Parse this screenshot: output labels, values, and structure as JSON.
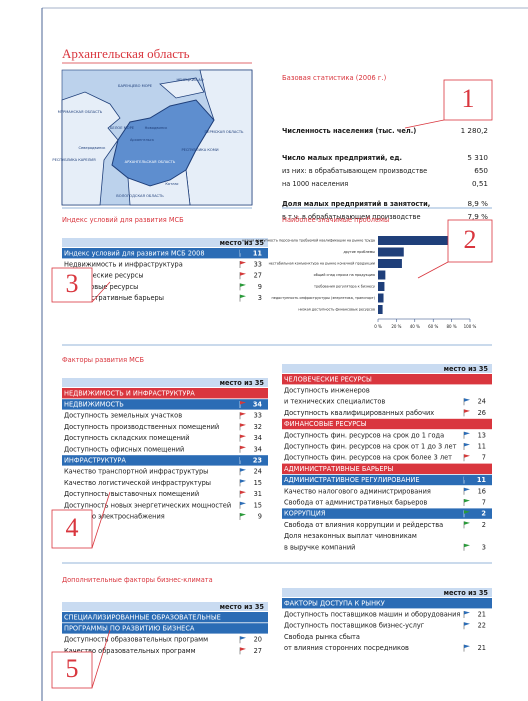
{
  "page": {
    "title": "Архангельская область",
    "map_labels": [
      "БАРЕНЦЕВО МОРЕ",
      "МУРМАНСКАЯ ОБЛАСТЬ",
      "НЕНЕЦКИЙ АО",
      "БЕЛОЕ МОРЕ",
      "Архангельск",
      "Северодвинск",
      "Новодвинск",
      "РЕСПУБЛИКА КАРЕЛИЯ",
      "АРХАНГЕЛЬСКАЯ ОБЛАСТЬ",
      "РЕСПУБЛИКА КОМИ",
      "ПЕРМСКАЯ ОБЛАСТЬ",
      "Котлас",
      "ВОЛОГОДСКАЯ ОБЛАСТЬ"
    ],
    "callouts": [
      "1",
      "2",
      "3",
      "4",
      "5"
    ]
  },
  "stats": {
    "title": "Базовая статистика (2006 г.)",
    "rows": [
      {
        "label": "Численность населения (тыс. чел.)",
        "value": "1 280,2",
        "bold": true
      },
      {
        "label": "Число малых предприятий, ед.",
        "value": "5 310",
        "bold": true
      },
      {
        "label": "из них: в обрабатывающем производстве",
        "value": "650",
        "bold": false
      },
      {
        "label": "на 1000 населения",
        "value": "0,51",
        "bold": false
      },
      {
        "label": "Доля малых предприятий в занятости,",
        "value": "8,9 %",
        "bold": true
      },
      {
        "label": "в т.ч. в обрабатывающем производстве",
        "value": "7,9 %",
        "bold": false
      }
    ]
  },
  "index": {
    "title": "Индекс условий для развития МСБ",
    "header": "место из 35",
    "rows": [
      {
        "text": "Индекс условий для развития МСБ 2008",
        "value": 11,
        "kind": "sub",
        "flag": "blue"
      },
      {
        "text": "Недвижимость и инфраструктура",
        "value": 33,
        "flag": "red"
      },
      {
        "text": "Человеческие ресурсы",
        "value": 27,
        "flag": "red"
      },
      {
        "text": "Финансовые ресурсы",
        "value": 9,
        "flag": "green"
      },
      {
        "text": "Административные барьеры",
        "value": 3,
        "flag": "green"
      }
    ]
  },
  "chart_data": {
    "type": "bar",
    "title": "Наиболее значимые проблемы",
    "categories": [
      "низкая доступность персонала требуемой квалификации на рынке труда",
      "другие проблемы",
      "нестабильная конъюнктура на рынке конечной продукции",
      "общий спад спроса на продукцию",
      "требования регулятора к бизнесу",
      "недоступность инфраструктуры (энергетика, транспорт)",
      "низкая доступность финансовых ресурсов"
    ],
    "values": [
      82,
      28,
      26,
      8,
      7,
      6,
      5
    ],
    "color": "#1f3f7a",
    "xlim": [
      0,
      100
    ],
    "xticks": [
      {
        "value": 0,
        "label": "0 %"
      },
      {
        "value": 20,
        "label": "20 %"
      },
      {
        "value": 40,
        "label": "40 %"
      },
      {
        "value": 60,
        "label": "60 %"
      },
      {
        "value": 80,
        "label": "80 %"
      },
      {
        "value": 100,
        "label": "100 %"
      }
    ]
  },
  "factors": {
    "title": "Факторы развития МСБ",
    "left": {
      "header": "место из 35",
      "rows": [
        {
          "text": "НЕДВИЖИМОСТЬ И ИНФРАСТРУКТУРА",
          "kind": "section"
        },
        {
          "text": "НЕДВИЖИМОСТЬ",
          "value": 34,
          "kind": "sub",
          "flag": "red"
        },
        {
          "text": "Доступность земельных участков",
          "value": 33,
          "flag": "red"
        },
        {
          "text": "Доступность производственных помещений",
          "value": 32,
          "flag": "red"
        },
        {
          "text": "Доступность складских помещений",
          "value": 34,
          "flag": "red"
        },
        {
          "text": "Доступность офисных помещений",
          "value": 34,
          "flag": "red"
        },
        {
          "text": "ИНФРАСТРУКТУРА",
          "value": 23,
          "kind": "sub",
          "flag": "blue"
        },
        {
          "text": "Качество транспортной инфраструктуры",
          "value": 24,
          "flag": "blue"
        },
        {
          "text": "Качество логистической инфраструктуры",
          "value": 15,
          "flag": "blue"
        },
        {
          "text": "Доступность выставочных помещений",
          "value": 31,
          "flag": "red"
        },
        {
          "text": "Доступность новых энергетических мощностей",
          "value": 15,
          "flag": "blue"
        },
        {
          "text": "Качество электроснабжения",
          "value": 9,
          "flag": "green"
        }
      ]
    },
    "right": {
      "header": "место из 35",
      "rows": [
        {
          "text": "ЧЕЛОВЕЧЕСКИЕ РЕСУРСЫ",
          "kind": "section"
        },
        {
          "text": "Доступность инженеров"
        },
        {
          "text": "и технических специалистов",
          "value": 24,
          "flag": "blue"
        },
        {
          "text": "Доступность квалифицированных рабочих",
          "value": 26,
          "flag": "red"
        },
        {
          "text": "ФИНАНСОВЫЕ РЕСУРСЫ",
          "kind": "section"
        },
        {
          "text": "Доступность фин. ресурсов на срок до 1 года",
          "value": 13,
          "flag": "blue"
        },
        {
          "text": "Доступность фин. ресурсов на срок от 1 до 3 лет",
          "value": 11,
          "flag": "blue"
        },
        {
          "text": "Доступность фин. ресурсов на срок более 3 лет",
          "value": 7,
          "flag": "red"
        },
        {
          "text": "АДМИНИСТРАТИВНЫЕ БАРЬЕРЫ",
          "kind": "section"
        },
        {
          "text": "АДМИНИСТРАТИВНОЕ РЕГУЛИРОВАНИЕ",
          "value": 11,
          "kind": "sub",
          "flag": "blue"
        },
        {
          "text": "Качество налогового администрирования",
          "value": 16,
          "flag": "blue"
        },
        {
          "text": "Свобода от административных барьеров",
          "value": 7,
          "flag": "green"
        },
        {
          "text": "КОРРУПЦИЯ",
          "value": 2,
          "kind": "sub",
          "flag": "green"
        },
        {
          "text": "Свобода от влияния коррупции и рейдерства",
          "value": 2,
          "flag": "green"
        },
        {
          "text": "Доля незаконных выплат чиновникам"
        },
        {
          "text": "в выручке компаний",
          "value": 3,
          "flag": "green"
        }
      ]
    }
  },
  "extra": {
    "title": "Дополнительные факторы бизнес-климата",
    "left": {
      "header": "место из 35",
      "rows": [
        {
          "text": "СПЕЦИАЛИЗИРОВАННЫЕ ОБРАЗОВАТЕЛЬНЫЕ",
          "kind": "sub"
        },
        {
          "text": "ПРОГРАММЫ ПО РАЗВИТИЮ БИЗНЕСА",
          "kind": "sub"
        },
        {
          "text": "Доступность образовательных программ",
          "value": 20,
          "flag": "blue"
        },
        {
          "text": "Качество образовательных программ",
          "value": 27,
          "flag": "red"
        }
      ]
    },
    "right": {
      "header": "место из 35",
      "rows": [
        {
          "text": "ФАКТОРЫ ДОСТУПА К РЫНКУ",
          "kind": "sub"
        },
        {
          "text": "Доступность поставщиков машин и оборудования",
          "value": 21,
          "flag": "blue"
        },
        {
          "text": "Доступность поставщиков бизнес-услуг",
          "value": 22,
          "flag": "blue"
        },
        {
          "text": "Свобода рынка сбыта"
        },
        {
          "text": "от влияния сторонних посредников",
          "value": 21,
          "flag": "blue"
        }
      ]
    }
  }
}
